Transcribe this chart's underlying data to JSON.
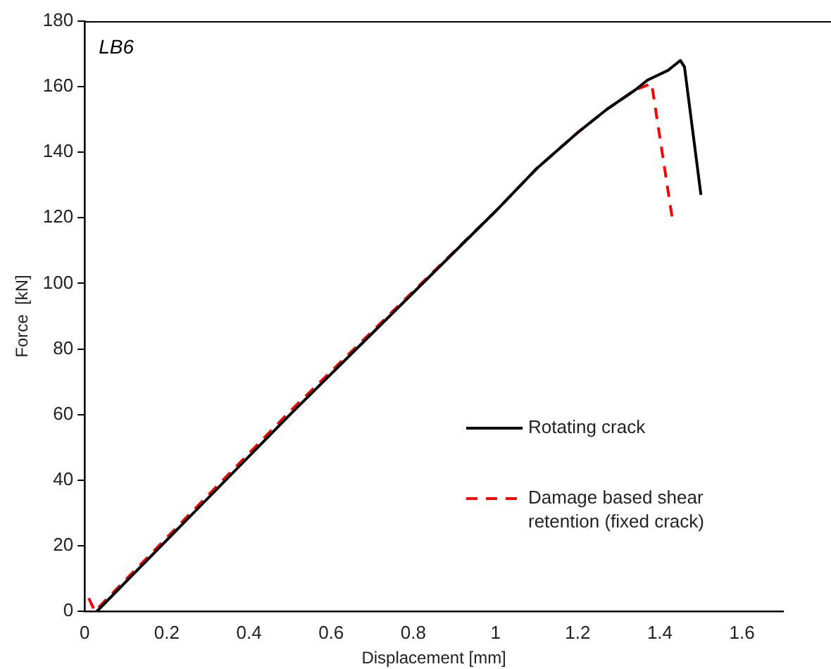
{
  "chart_data": {
    "type": "line",
    "xlabel": "Displacement [mm]",
    "ylabel": "Force  [kN]",
    "annotations": [
      "LB6"
    ],
    "xlim": [
      0,
      1.7
    ],
    "xticks": [
      0,
      0.2,
      0.4,
      0.6,
      0.8,
      1,
      1.2,
      1.4,
      1.6
    ],
    "ylim": [
      0,
      180
    ],
    "yticks": [
      0,
      20,
      40,
      60,
      80,
      100,
      120,
      140,
      160,
      180
    ],
    "grid": false,
    "legend": "bottom right",
    "marker": "none",
    "series": [
      {
        "name": "Rotating crack",
        "color": "#000000",
        "line_style": "solid",
        "x": [
          0.03,
          0.5,
          1.0,
          1.1,
          1.2,
          1.27,
          1.34,
          1.37,
          1.42,
          1.44,
          1.45,
          1.46,
          1.5
        ],
        "values": [
          0,
          60,
          122,
          135,
          146,
          153,
          159,
          162,
          165,
          167,
          168,
          166,
          127
        ]
      },
      {
        "name": "Damage based shear retention (fixed crack)",
        "color": "#ff0000",
        "line_style": "dashed",
        "x": [
          0.01,
          0.025,
          0.5,
          1.0,
          1.1,
          1.2,
          1.27,
          1.34,
          1.38,
          1.43
        ],
        "values": [
          4,
          0,
          61,
          122,
          135,
          146,
          153,
          159,
          161,
          120
        ]
      }
    ]
  }
}
